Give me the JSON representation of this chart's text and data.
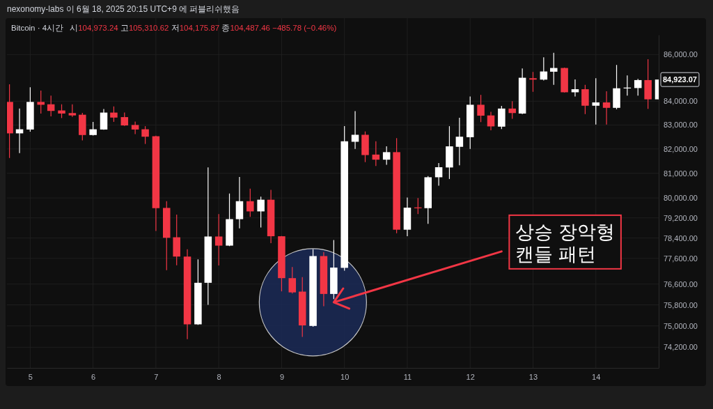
{
  "chart_data": {
    "type": "candlestick",
    "title": "Bitcoin · 4시간",
    "subtitle": "시104,973.24 고105,310.62 저104,175.87 종104,487.46 −485.78 (−0.46%)",
    "annotations": [
      "nexonomy-labs 이 6월 18, 2025 20:15 UTC+9 에 퍼블리쉬했음",
      {
        "text": "상승 장악형\n캔들 패턴",
        "x": 9.83,
        "y": 75900
      }
    ],
    "x": [
      4.67,
      4.83,
      5,
      5.17,
      5.33,
      5.5,
      5.67,
      5.83,
      6,
      6.17,
      6.33,
      6.5,
      6.67,
      6.83,
      7,
      7.17,
      7.33,
      7.5,
      7.67,
      7.83,
      8,
      8.17,
      8.33,
      8.5,
      8.67,
      8.83,
      9,
      9.17,
      9.33,
      9.5,
      9.67,
      9.83,
      10,
      10.17,
      10.33,
      10.5,
      10.67,
      10.83,
      11,
      11.17,
      11.33,
      11.5,
      11.67,
      11.83,
      12,
      12.17,
      12.33,
      12.5,
      12.67,
      12.83,
      13,
      13.17,
      13.33,
      13.5,
      13.67,
      13.83,
      14,
      14.17,
      14.33,
      14.5,
      14.67,
      14.83,
      15
    ],
    "ohlc": [
      [
        83970,
        84720,
        81630,
        82650
      ],
      [
        82650,
        83690,
        81830,
        82820
      ],
      [
        82810,
        84590,
        82720,
        83970
      ],
      [
        83970,
        84450,
        83480,
        83850
      ],
      [
        83870,
        84240,
        83360,
        83590
      ],
      [
        83610,
        83870,
        83290,
        83480
      ],
      [
        83500,
        83870,
        83340,
        83400
      ],
      [
        83430,
        83510,
        82360,
        82580
      ],
      [
        82580,
        83130,
        82560,
        82820
      ],
      [
        82810,
        83670,
        82800,
        83520
      ],
      [
        83520,
        83780,
        83130,
        83310
      ],
      [
        83330,
        83520,
        82960,
        82980
      ],
      [
        83000,
        83140,
        82620,
        82810
      ],
      [
        82820,
        82950,
        82210,
        82510
      ],
      [
        82530,
        82550,
        78680,
        79590
      ],
      [
        79600,
        79870,
        77140,
        78410
      ],
      [
        78430,
        79330,
        77330,
        77670
      ],
      [
        77670,
        77960,
        74500,
        75060
      ],
      [
        75060,
        77560,
        75040,
        76650
      ],
      [
        76650,
        81240,
        75800,
        78460
      ],
      [
        78460,
        79350,
        77320,
        78100
      ],
      [
        78100,
        80180,
        78080,
        79150
      ],
      [
        79150,
        80850,
        78780,
        79870
      ],
      [
        79870,
        80380,
        79240,
        79460
      ],
      [
        79460,
        80050,
        78820,
        79930
      ],
      [
        79930,
        80330,
        78200,
        78470
      ],
      [
        78470,
        78480,
        76320,
        76830
      ],
      [
        76830,
        77260,
        76240,
        76280
      ],
      [
        76310,
        76870,
        74590,
        75020
      ],
      [
        75000,
        77960,
        74970,
        77690
      ],
      [
        77690,
        77850,
        75750,
        76220
      ],
      [
        76220,
        78320,
        76020,
        77240
      ],
      [
        77230,
        82950,
        77120,
        82320
      ],
      [
        82300,
        83580,
        82000,
        82590
      ],
      [
        82590,
        82730,
        81460,
        81750
      ],
      [
        81770,
        82320,
        81300,
        81560
      ],
      [
        81560,
        82110,
        81350,
        81870
      ],
      [
        81870,
        82450,
        78590,
        78730
      ],
      [
        78730,
        80020,
        78470,
        79610
      ],
      [
        79620,
        80000,
        79350,
        79590
      ],
      [
        79590,
        80890,
        78960,
        80840
      ],
      [
        80840,
        81420,
        80500,
        81250
      ],
      [
        81240,
        82950,
        80770,
        82110
      ],
      [
        82090,
        83300,
        81330,
        82510
      ],
      [
        82490,
        84200,
        82000,
        83850
      ],
      [
        83850,
        84270,
        83120,
        83390
      ],
      [
        83400,
        83550,
        82780,
        82940
      ],
      [
        82930,
        83800,
        82830,
        83690
      ],
      [
        83690,
        84000,
        83260,
        83500
      ],
      [
        83480,
        85400,
        83460,
        85000
      ],
      [
        84980,
        85250,
        84400,
        84920
      ],
      [
        84920,
        85880,
        84880,
        85270
      ],
      [
        85260,
        86080,
        84700,
        85420
      ],
      [
        85420,
        85440,
        84370,
        84380
      ],
      [
        84380,
        84930,
        84200,
        84510
      ],
      [
        84510,
        84700,
        83460,
        83810
      ],
      [
        83810,
        84980,
        83020,
        83950
      ],
      [
        83950,
        84420,
        83020,
        83720
      ],
      [
        83720,
        85550,
        83660,
        84550
      ],
      [
        84550,
        85100,
        84240,
        84580
      ],
      [
        84560,
        84950,
        84240,
        84900
      ],
      [
        84900,
        85800,
        83680,
        84080
      ],
      [
        84080,
        84923.07,
        84080,
        84923.07
      ]
    ],
    "colors": [
      "#f23645",
      "#ffffff",
      "#ffffff",
      "#f23645",
      "#f23645",
      "#f23645",
      "#f23645",
      "#f23645",
      "#ffffff",
      "#ffffff",
      "#f23645",
      "#f23645",
      "#f23645",
      "#f23645",
      "#f23645",
      "#f23645",
      "#f23645",
      "#f23645",
      "#ffffff",
      "#ffffff",
      "#f23645",
      "#ffffff",
      "#ffffff",
      "#f23645",
      "#ffffff",
      "#f23645",
      "#f23645",
      "#f23645",
      "#f23645",
      "#ffffff",
      "#f23645",
      "#ffffff",
      "#ffffff",
      "#ffffff",
      "#f23645",
      "#f23645",
      "#ffffff",
      "#f23645",
      "#ffffff",
      "#f23645",
      "#ffffff",
      "#ffffff",
      "#ffffff",
      "#ffffff",
      "#ffffff",
      "#f23645",
      "#f23645",
      "#ffffff",
      "#f23645",
      "#ffffff",
      "#f23645",
      "#ffffff",
      "#ffffff",
      "#f23645",
      "#ffffff",
      "#f23645",
      "#ffffff",
      "#f23645",
      "#ffffff",
      "#ffffff",
      "#ffffff",
      "#f23645",
      "#ffffff"
    ],
    "value_labels": [
      null,
      null,
      null,
      null,
      null,
      null,
      null,
      null,
      null,
      null,
      null,
      null,
      null,
      null,
      null,
      null,
      null,
      null,
      null,
      null,
      null,
      null,
      null,
      null,
      null,
      null,
      null,
      null,
      null,
      null,
      null,
      null,
      null,
      null,
      null,
      null,
      null,
      null,
      null,
      null,
      null,
      null,
      null,
      null,
      null,
      null,
      null,
      null,
      null,
      null,
      null,
      null,
      null,
      null,
      null,
      null,
      null,
      null,
      null,
      null,
      null,
      null,
      "84,923.07"
    ],
    "xlim": [
      4.63,
      15
    ],
    "xticks": [
      5,
      6,
      7,
      8,
      9,
      10,
      11,
      12,
      13,
      14
    ],
    "ylim": [
      73430,
      86860
    ],
    "yticks": [
      {
        "value": 74200,
        "label": "74,200.00"
      },
      {
        "value": 75000,
        "label": "75,000.00"
      },
      {
        "value": 75800,
        "label": "75,800.00"
      },
      {
        "value": 76600,
        "label": "76,600.00"
      },
      {
        "value": 77600,
        "label": "77,600.00"
      },
      {
        "value": 78400,
        "label": "78,400.00"
      },
      {
        "value": 79200,
        "label": "79,200.00"
      },
      {
        "value": 80000,
        "label": "80,000.00"
      },
      {
        "value": 81000,
        "label": "81,000.00"
      },
      {
        "value": 82000,
        "label": "82,000.00"
      },
      {
        "value": 83000,
        "label": "83,000.00"
      },
      {
        "value": 84000,
        "label": "84,000.00"
      },
      {
        "value": 86000,
        "label": "86,000.00"
      }
    ],
    "log": true,
    "grid": true
  }
}
